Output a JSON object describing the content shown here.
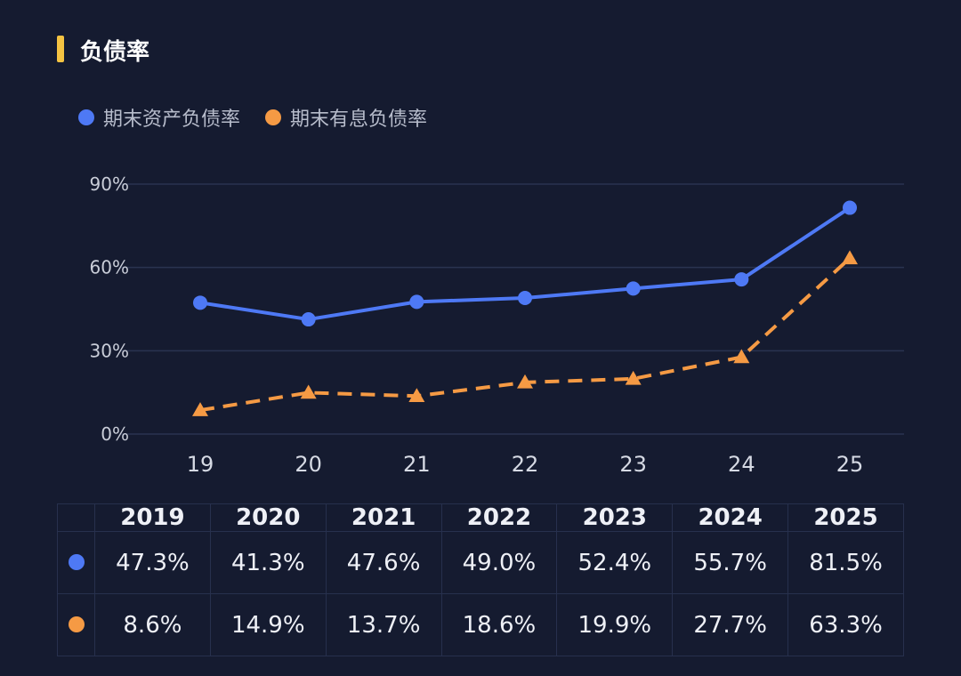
{
  "title": "负债率",
  "colors": {
    "accent_bar": "#f5c342",
    "series1": "#4e79f5",
    "series2": "#f59a44",
    "grid": "#2a3350"
  },
  "legend": [
    {
      "label": "期末资产负债率",
      "color": "#4e79f5"
    },
    {
      "label": "期末有息负债率",
      "color": "#f59a44"
    }
  ],
  "chart_data": {
    "type": "line",
    "title": "负债率",
    "x": [
      "19",
      "20",
      "21",
      "22",
      "23",
      "24",
      "25"
    ],
    "yticks": [
      "0%",
      "30%",
      "60%",
      "90%"
    ],
    "ylim": [
      0,
      90
    ],
    "grid": true,
    "legend_position": "top-left",
    "series": [
      {
        "name": "期末资产负债率",
        "color": "#4e79f5",
        "style": "solid",
        "marker": "circle",
        "values": [
          47.3,
          41.3,
          47.6,
          49.0,
          52.4,
          55.7,
          81.5
        ]
      },
      {
        "name": "期末有息负债率",
        "color": "#f59a44",
        "style": "dashed",
        "marker": "triangle",
        "values": [
          8.6,
          14.9,
          13.7,
          18.6,
          19.9,
          27.7,
          63.3
        ]
      }
    ]
  },
  "table": {
    "headers": [
      "2019",
      "2020",
      "2021",
      "2022",
      "2023",
      "2024",
      "2025"
    ],
    "rows": [
      {
        "color": "#4e79f5",
        "cells": [
          "47.3%",
          "41.3%",
          "47.6%",
          "49.0%",
          "52.4%",
          "55.7%",
          "81.5%"
        ]
      },
      {
        "color": "#f59a44",
        "cells": [
          "8.6%",
          "14.9%",
          "13.7%",
          "18.6%",
          "19.9%",
          "27.7%",
          "63.3%"
        ]
      }
    ]
  }
}
